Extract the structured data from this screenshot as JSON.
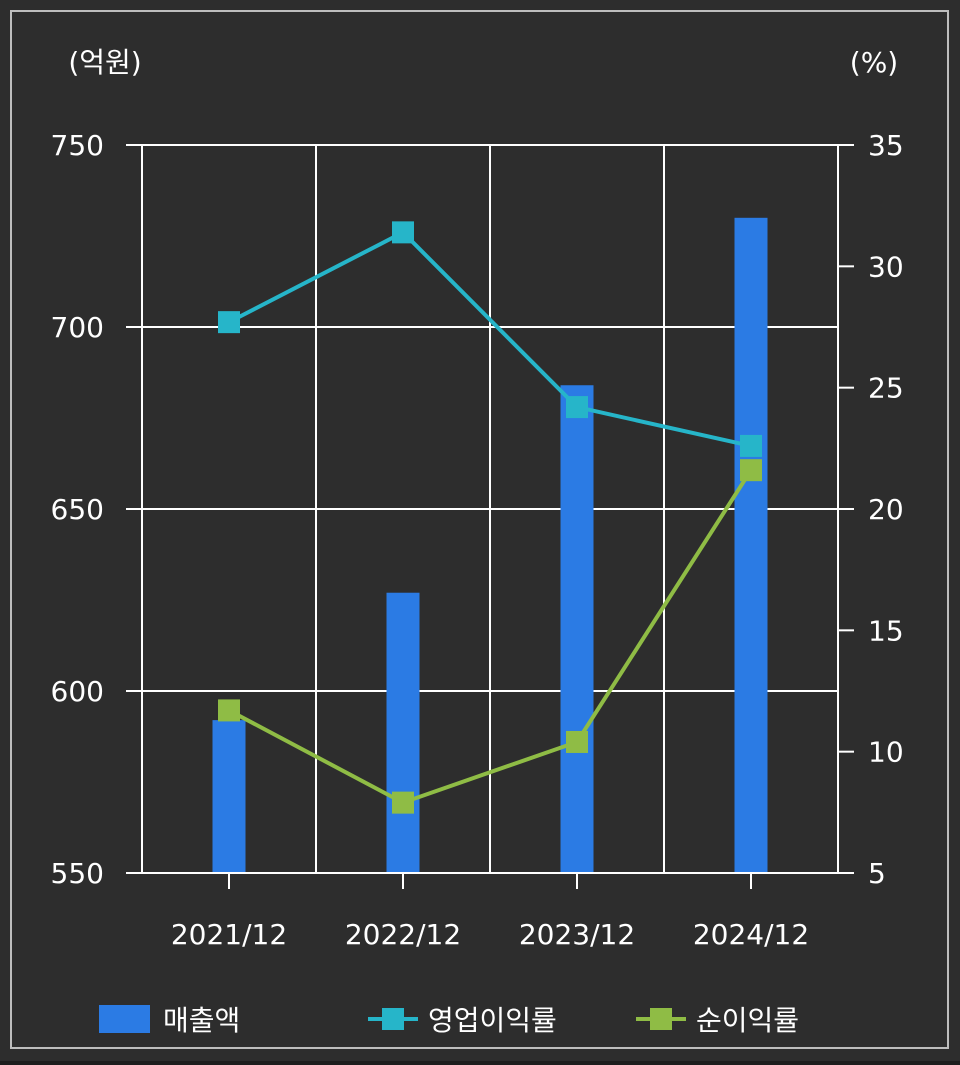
{
  "colors": {
    "background": "#2d2d2d",
    "frame": "#bdbdbd",
    "grid": "#ffffff",
    "text": "#ffffff",
    "bar": "#2b7be4",
    "operating_margin": "#26b5c9",
    "net_margin": "#8fbc45"
  },
  "chart_data": {
    "type": "bar",
    "left_unit": "(억원)",
    "right_unit": "(%)",
    "categories": [
      "2021/12",
      "2022/12",
      "2023/12",
      "2024/12"
    ],
    "y_left": {
      "min": 550,
      "max": 750,
      "ticks": [
        "550",
        "600",
        "650",
        "700",
        "750"
      ]
    },
    "y_right": {
      "min": 5,
      "max": 35,
      "ticks": [
        "5",
        "10",
        "15",
        "20",
        "25",
        "30",
        "35"
      ]
    },
    "grid": true,
    "legend_position": "bottom",
    "series": [
      {
        "name": "매출액",
        "type": "bar",
        "axis": "left",
        "values": [
          592,
          627,
          684,
          730
        ]
      },
      {
        "name": "영업이익률",
        "type": "line",
        "axis": "right",
        "values": [
          27.7,
          31.4,
          24.2,
          22.6
        ]
      },
      {
        "name": "순이익률",
        "type": "line",
        "axis": "right",
        "values": [
          11.7,
          7.9,
          10.4,
          21.6
        ]
      }
    ]
  }
}
